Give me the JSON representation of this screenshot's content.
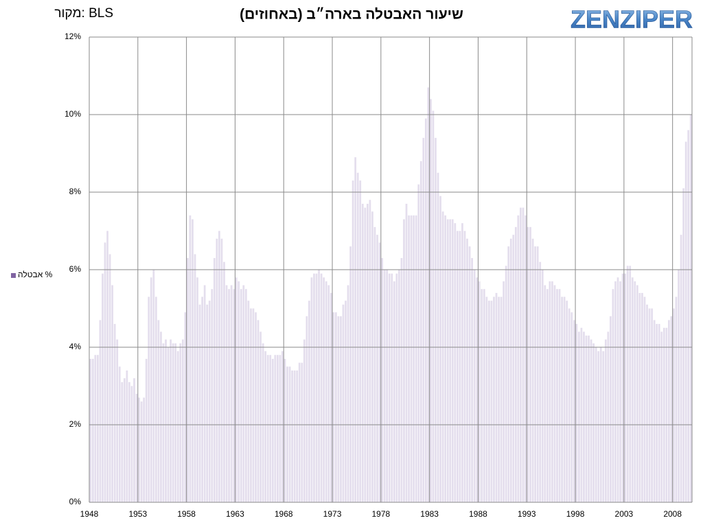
{
  "chart_data": {
    "type": "bar",
    "title": "שיעור האבטלה בארה״ב (באחוזים)",
    "source": "מקור: BLS",
    "logo": "ZENZIPER",
    "legend": "left",
    "grid": true,
    "xlim": [
      1948,
      2010
    ],
    "xticks": [
      1948,
      1953,
      1958,
      1963,
      1968,
      1973,
      1978,
      1983,
      1988,
      1993,
      1998,
      2003,
      2008
    ],
    "ylim": [
      0,
      12
    ],
    "yticks": [
      {
        "value": 0,
        "label": "0%"
      },
      {
        "value": 2,
        "label": "2%"
      },
      {
        "value": 4,
        "label": "4%"
      },
      {
        "value": 6,
        "label": "6%"
      },
      {
        "value": 8,
        "label": "8%"
      },
      {
        "value": 10,
        "label": "10%"
      },
      {
        "value": 12,
        "label": "12%"
      }
    ],
    "x": [
      1948,
      1948.25,
      1948.5,
      1948.75,
      1949,
      1949.25,
      1949.5,
      1949.75,
      1950,
      1950.25,
      1950.5,
      1950.75,
      1951,
      1951.25,
      1951.5,
      1951.75,
      1952,
      1952.25,
      1952.5,
      1952.75,
      1953,
      1953.25,
      1953.5,
      1953.75,
      1954,
      1954.25,
      1954.5,
      1954.75,
      1955,
      1955.25,
      1955.5,
      1955.75,
      1956,
      1956.25,
      1956.5,
      1956.75,
      1957,
      1957.25,
      1957.5,
      1957.75,
      1958,
      1958.25,
      1958.5,
      1958.75,
      1959,
      1959.25,
      1959.5,
      1959.75,
      1960,
      1960.25,
      1960.5,
      1960.75,
      1961,
      1961.25,
      1961.5,
      1961.75,
      1962,
      1962.25,
      1962.5,
      1962.75,
      1963,
      1963.25,
      1963.5,
      1963.75,
      1964,
      1964.25,
      1964.5,
      1964.75,
      1965,
      1965.25,
      1965.5,
      1965.75,
      1966,
      1966.25,
      1966.5,
      1966.75,
      1967,
      1967.25,
      1967.5,
      1967.75,
      1968,
      1968.25,
      1968.5,
      1968.75,
      1969,
      1969.25,
      1969.5,
      1969.75,
      1970,
      1970.25,
      1970.5,
      1970.75,
      1971,
      1971.25,
      1971.5,
      1971.75,
      1972,
      1972.25,
      1972.5,
      1972.75,
      1973,
      1973.25,
      1973.5,
      1973.75,
      1974,
      1974.25,
      1974.5,
      1974.75,
      1975,
      1975.25,
      1975.5,
      1975.75,
      1976,
      1976.25,
      1976.5,
      1976.75,
      1977,
      1977.25,
      1977.5,
      1977.75,
      1978,
      1978.25,
      1978.5,
      1978.75,
      1979,
      1979.25,
      1979.5,
      1979.75,
      1980,
      1980.25,
      1980.5,
      1980.75,
      1981,
      1981.25,
      1981.5,
      1981.75,
      1982,
      1982.25,
      1982.5,
      1982.75,
      1983,
      1983.25,
      1983.5,
      1983.75,
      1984,
      1984.25,
      1984.5,
      1984.75,
      1985,
      1985.25,
      1985.5,
      1985.75,
      1986,
      1986.25,
      1986.5,
      1986.75,
      1987,
      1987.25,
      1987.5,
      1987.75,
      1988,
      1988.25,
      1988.5,
      1988.75,
      1989,
      1989.25,
      1989.5,
      1989.75,
      1990,
      1990.25,
      1990.5,
      1990.75,
      1991,
      1991.25,
      1991.5,
      1991.75,
      1992,
      1992.25,
      1992.5,
      1992.75,
      1993,
      1993.25,
      1993.5,
      1993.75,
      1994,
      1994.25,
      1994.5,
      1994.75,
      1995,
      1995.25,
      1995.5,
      1995.75,
      1996,
      1996.25,
      1996.5,
      1996.75,
      1997,
      1997.25,
      1997.5,
      1997.75,
      1998,
      1998.25,
      1998.5,
      1998.75,
      1999,
      1999.25,
      1999.5,
      1999.75,
      2000,
      2000.25,
      2000.5,
      2000.75,
      2001,
      2001.25,
      2001.5,
      2001.75,
      2002,
      2002.25,
      2002.5,
      2002.75,
      2003,
      2003.25,
      2003.5,
      2003.75,
      2004,
      2004.25,
      2004.5,
      2004.75,
      2005,
      2005.25,
      2005.5,
      2005.75,
      2006,
      2006.25,
      2006.5,
      2006.75,
      2007,
      2007.25,
      2007.5,
      2007.75,
      2008,
      2008.25,
      2008.5,
      2008.75,
      2009,
      2009.25,
      2009.5,
      2009.75
    ],
    "series": [
      {
        "name": "אבטלה %",
        "color": "#e4deed",
        "legend_color": "#8064a2",
        "values": [
          3.7,
          3.7,
          3.8,
          3.8,
          4.7,
          5.9,
          6.7,
          7.0,
          6.4,
          5.6,
          4.6,
          4.2,
          3.5,
          3.1,
          3.2,
          3.4,
          3.1,
          3.0,
          3.2,
          2.8,
          2.7,
          2.6,
          2.7,
          3.7,
          5.3,
          5.8,
          6.0,
          5.3,
          4.7,
          4.4,
          4.1,
          4.2,
          4.0,
          4.2,
          4.1,
          4.1,
          3.9,
          4.1,
          4.2,
          4.9,
          6.3,
          7.4,
          7.3,
          6.4,
          5.8,
          5.1,
          5.3,
          5.6,
          5.1,
          5.2,
          5.5,
          6.3,
          6.8,
          7.0,
          6.8,
          6.2,
          5.6,
          5.5,
          5.6,
          5.5,
          5.8,
          5.7,
          5.5,
          5.6,
          5.5,
          5.2,
          5.0,
          5.0,
          4.9,
          4.7,
          4.4,
          4.1,
          3.9,
          3.8,
          3.8,
          3.7,
          3.8,
          3.8,
          3.8,
          3.9,
          3.7,
          3.5,
          3.5,
          3.4,
          3.4,
          3.4,
          3.6,
          3.6,
          4.2,
          4.8,
          5.2,
          5.8,
          5.9,
          5.9,
          6.0,
          5.9,
          5.8,
          5.7,
          5.6,
          5.4,
          4.9,
          4.9,
          4.8,
          4.8,
          5.1,
          5.2,
          5.6,
          6.6,
          8.3,
          8.9,
          8.5,
          8.3,
          7.7,
          7.6,
          7.7,
          7.8,
          7.5,
          7.1,
          6.9,
          6.7,
          6.3,
          6.0,
          6.0,
          5.9,
          5.9,
          5.7,
          5.9,
          6.0,
          6.3,
          7.3,
          7.7,
          7.4,
          7.4,
          7.4,
          7.4,
          8.2,
          8.8,
          9.4,
          9.9,
          10.7,
          10.4,
          10.1,
          9.4,
          8.5,
          7.9,
          7.5,
          7.4,
          7.3,
          7.3,
          7.3,
          7.2,
          7.0,
          7.0,
          7.2,
          7.0,
          6.8,
          6.6,
          6.3,
          6.0,
          5.8,
          5.7,
          5.5,
          5.5,
          5.3,
          5.2,
          5.2,
          5.3,
          5.4,
          5.3,
          5.3,
          5.7,
          6.1,
          6.6,
          6.8,
          6.9,
          7.1,
          7.4,
          7.6,
          7.6,
          7.4,
          7.1,
          7.1,
          6.8,
          6.6,
          6.6,
          6.2,
          6.0,
          5.6,
          5.5,
          5.7,
          5.7,
          5.6,
          5.5,
          5.5,
          5.3,
          5.3,
          5.2,
          5.0,
          4.9,
          4.7,
          4.6,
          4.4,
          4.5,
          4.4,
          4.3,
          4.3,
          4.2,
          4.1,
          4.0,
          3.9,
          4.0,
          3.9,
          4.2,
          4.4,
          4.8,
          5.5,
          5.7,
          5.8,
          5.7,
          5.9,
          5.9,
          6.1,
          6.1,
          5.8,
          5.7,
          5.6,
          5.4,
          5.4,
          5.3,
          5.1,
          5.0,
          5.0,
          4.7,
          4.6,
          4.6,
          4.4,
          4.5,
          4.5,
          4.7,
          4.8,
          5.0,
          5.3,
          6.0,
          6.9,
          8.1,
          9.3,
          9.6,
          10.0
        ]
      }
    ]
  }
}
